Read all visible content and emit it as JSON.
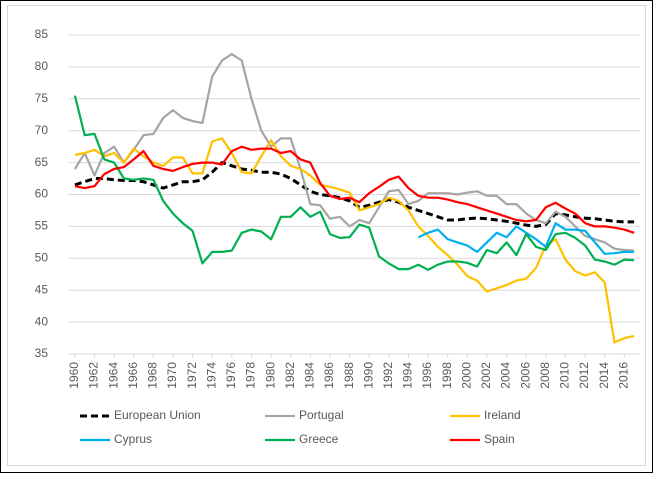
{
  "chart_data": {
    "type": "line",
    "x": [
      1960,
      1961,
      1962,
      1963,
      1964,
      1965,
      1966,
      1967,
      1968,
      1969,
      1970,
      1971,
      1972,
      1973,
      1974,
      1975,
      1976,
      1977,
      1978,
      1979,
      1980,
      1981,
      1982,
      1983,
      1984,
      1985,
      1986,
      1987,
      1988,
      1989,
      1990,
      1991,
      1992,
      1993,
      1994,
      1995,
      1996,
      1997,
      1998,
      1999,
      2000,
      2001,
      2002,
      2003,
      2004,
      2005,
      2006,
      2007,
      2008,
      2009,
      2010,
      2011,
      2012,
      2013,
      2014,
      2015,
      2016,
      2017
    ],
    "xlim": [
      1959.3,
      2017.6
    ],
    "xticks": [
      1960,
      1962,
      1964,
      1966,
      1968,
      1970,
      1972,
      1974,
      1976,
      1978,
      1980,
      1982,
      1984,
      1986,
      1988,
      1990,
      1992,
      1994,
      1996,
      1998,
      2000,
      2002,
      2004,
      2006,
      2008,
      2010,
      2012,
      2014,
      2016
    ],
    "ylim": [
      35,
      85
    ],
    "yticks": [
      35,
      40,
      45,
      50,
      55,
      60,
      65,
      70,
      75,
      80,
      85
    ],
    "grid": true,
    "series": [
      {
        "name": "European Union",
        "color": "#000000",
        "dashed": true,
        "values": [
          61.5,
          62,
          62.5,
          62.5,
          62.3,
          62.2,
          62.2,
          62,
          61.5,
          61,
          61.5,
          62,
          62,
          62.3,
          63.5,
          65,
          64.5,
          64,
          63.8,
          63.5,
          63.5,
          63.2,
          62.5,
          61.5,
          60.5,
          60,
          59.8,
          59.5,
          59,
          58,
          58.3,
          58.8,
          59.2,
          58.8,
          58,
          57.5,
          57,
          56.5,
          56,
          56,
          56.2,
          56.3,
          56.2,
          56,
          55.8,
          55.5,
          55.2,
          55,
          55.3,
          57,
          56.8,
          56.5,
          56.3,
          56.2,
          56,
          55.8,
          55.7,
          55.7
        ]
      },
      {
        "name": "Portugal",
        "color": "#a5a5a5",
        "values": [
          64,
          66.5,
          63,
          66.5,
          67.5,
          65,
          67,
          69.3,
          69.5,
          72,
          73.2,
          72,
          71.5,
          71.2,
          78.5,
          81,
          82,
          81,
          75,
          70,
          67.5,
          68.8,
          68.8,
          64,
          58.5,
          58.3,
          56.2,
          56.5,
          55,
          56,
          55.5,
          58,
          60.5,
          60.7,
          58.5,
          59,
          60.2,
          60.2,
          60.2,
          60,
          60.3,
          60.5,
          59.8,
          59.8,
          58.5,
          58.5,
          57,
          56,
          55.5,
          57.3,
          56.5,
          55,
          53.5,
          53,
          52.5,
          51.5,
          51.3,
          51.2
        ]
      },
      {
        "name": "Ireland",
        "color": "#ffc000",
        "values": [
          66.2,
          66.5,
          67,
          66,
          66.5,
          65,
          67.2,
          66,
          65,
          64.5,
          65.8,
          65.8,
          63.3,
          63.3,
          68.3,
          68.8,
          66.5,
          63.5,
          63.3,
          66,
          68.5,
          66,
          64.5,
          64,
          63,
          61.5,
          61.2,
          60.8,
          60.3,
          57.5,
          58,
          58.5,
          59.5,
          59,
          57.5,
          55,
          53.5,
          51.8,
          50.5,
          49,
          47.2,
          46.5,
          44.8,
          45.3,
          45.8,
          46.5,
          46.8,
          48.5,
          52,
          53,
          49.8,
          48,
          47.3,
          47.8,
          46.2,
          36.8,
          37.5,
          37.8
        ]
      },
      {
        "name": "Cyprus",
        "color": "#00b0f0",
        "values": [
          null,
          null,
          null,
          null,
          null,
          null,
          null,
          null,
          null,
          null,
          null,
          null,
          null,
          null,
          null,
          null,
          null,
          null,
          null,
          null,
          null,
          null,
          null,
          null,
          null,
          null,
          null,
          null,
          null,
          null,
          null,
          null,
          null,
          null,
          null,
          53.3,
          54,
          54.5,
          53,
          52.5,
          52,
          51,
          52.5,
          54,
          53.3,
          55,
          54,
          53,
          51.8,
          55.5,
          54.5,
          54.5,
          54.3,
          52.5,
          50.7,
          50.8,
          51,
          51
        ]
      },
      {
        "name": "Greece",
        "color": "#00b050",
        "values": [
          75.5,
          69.3,
          69.5,
          65.5,
          65,
          62.5,
          62.3,
          62.5,
          62.3,
          59,
          57,
          55.5,
          54.3,
          49.2,
          51,
          51,
          51.2,
          54,
          54.5,
          54.2,
          53,
          56.5,
          56.5,
          58,
          56.5,
          57.3,
          53.8,
          53.2,
          53.3,
          55.3,
          54.8,
          50.3,
          49.2,
          48.3,
          48.3,
          49,
          48.2,
          49,
          49.5,
          49.5,
          49.3,
          48.7,
          51.3,
          50.8,
          52.5,
          50.5,
          53.8,
          51.8,
          51.3,
          53.8,
          54,
          53.2,
          52,
          49.8,
          49.5,
          49,
          49.8,
          49.7
        ]
      },
      {
        "name": "Spain",
        "color": "#ff0000",
        "values": [
          61.3,
          61,
          61.3,
          63.2,
          64,
          64.3,
          65.5,
          66.8,
          64.5,
          64,
          63.7,
          64.3,
          64.8,
          65,
          65,
          64.7,
          66.8,
          67.5,
          67,
          67.2,
          67.2,
          66.5,
          66.8,
          65.5,
          65,
          61.8,
          59.8,
          59.3,
          59.5,
          58.8,
          60.2,
          61.2,
          62.3,
          62.8,
          61,
          59.8,
          59.5,
          59.5,
          59.2,
          58.8,
          58.5,
          58,
          57.5,
          57,
          56.5,
          56,
          55.8,
          56,
          58,
          58.7,
          57.8,
          57,
          55.5,
          55,
          55,
          54.8,
          54.5,
          54
        ]
      }
    ]
  }
}
